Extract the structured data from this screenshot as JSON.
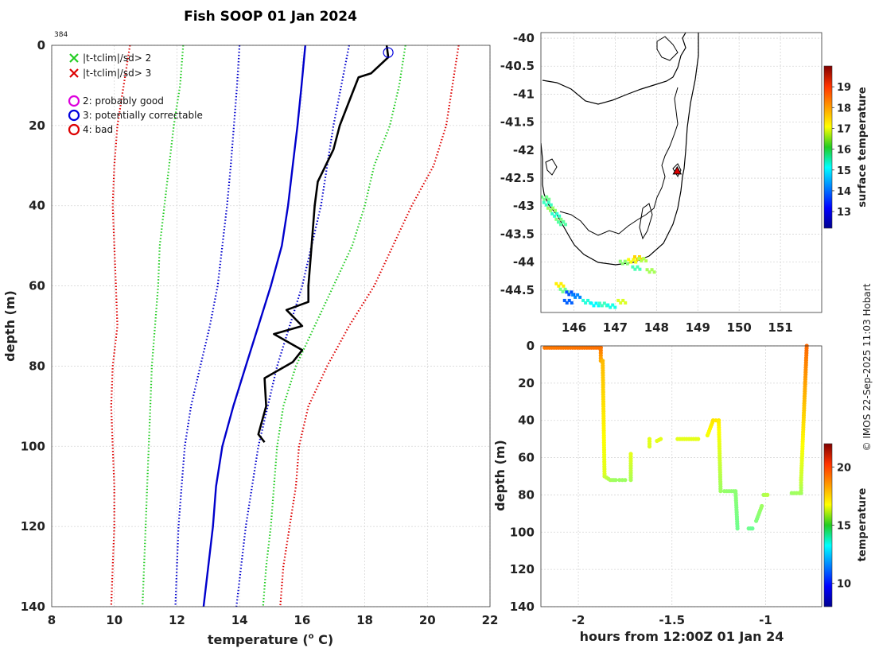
{
  "chart_data": [
    {
      "type": "line",
      "title": "Fish SOOP 01 Jan 2024",
      "annotation": "384",
      "xlabel": "temperature (",
      "xlabel_sup": "o",
      "xlabel_end": " C)",
      "ylabel": "depth (m)",
      "xlim": [
        8,
        22
      ],
      "ylim": [
        0,
        140
      ],
      "x_ticks": [
        "8",
        "10",
        "12",
        "14",
        "16",
        "18",
        "20",
        "22"
      ],
      "y_ticks": [
        "0",
        "20",
        "40",
        "60",
        "80",
        "100",
        "120",
        "140"
      ],
      "grid": true,
      "legend": [
        {
          "symbol": "x",
          "color": "#22cc22",
          "label": "|t-tclim|/sd> 2"
        },
        {
          "symbol": "x",
          "color": "#dd0000",
          "label": "|t-tclim|/sd> 3"
        },
        {
          "symbol": "o",
          "color": "#dd00dd",
          "label": "2: probably good"
        },
        {
          "symbol": "o",
          "color": "#0000dd",
          "label": "3: potentially correctable"
        },
        {
          "symbol": "o",
          "color": "#dd0000",
          "label": "4: bad"
        }
      ],
      "marker": {
        "x": 18.75,
        "depth": 1,
        "color": "#0000dd"
      },
      "series": [
        {
          "name": "clim mean",
          "color": "#0000cc",
          "style": "solid",
          "depth": [
            0,
            10,
            20,
            30,
            40,
            50,
            60,
            70,
            80,
            90,
            100,
            110,
            120,
            130,
            140
          ],
          "temp": [
            16.1,
            15.98,
            15.85,
            15.7,
            15.55,
            15.35,
            15.0,
            14.6,
            14.2,
            13.8,
            13.45,
            13.25,
            13.15,
            13.0,
            12.85
          ]
        },
        {
          "name": "-1 sd",
          "color": "#0000cc",
          "style": "dotted",
          "depth": [
            0,
            10,
            20,
            30,
            40,
            50,
            60,
            70,
            80,
            90,
            100,
            110,
            120,
            130,
            140
          ],
          "temp": [
            14.0,
            13.92,
            13.82,
            13.72,
            13.6,
            13.45,
            13.3,
            13.05,
            12.75,
            12.45,
            12.25,
            12.15,
            12.05,
            12.0,
            11.95
          ]
        },
        {
          "name": "+1 sd",
          "color": "#0000cc",
          "style": "dotted",
          "depth": [
            0,
            10,
            20,
            30,
            40,
            50,
            60,
            70,
            80,
            90,
            100,
            110,
            120,
            130,
            140
          ],
          "temp": [
            17.5,
            17.25,
            17.0,
            16.8,
            16.6,
            16.3,
            16.0,
            15.6,
            15.2,
            14.9,
            14.6,
            14.4,
            14.2,
            14.05,
            13.9
          ]
        },
        {
          "name": "-2 sd",
          "color": "#22cc22",
          "style": "dotted",
          "depth": [
            0,
            10,
            20,
            30,
            40,
            50,
            60,
            70,
            80,
            90,
            100,
            110,
            120,
            130,
            140
          ],
          "temp": [
            12.2,
            12.1,
            11.9,
            11.75,
            11.6,
            11.45,
            11.4,
            11.3,
            11.2,
            11.15,
            11.1,
            11.05,
            11.0,
            10.95,
            10.9
          ]
        },
        {
          "name": "+2 sd",
          "color": "#22cc22",
          "style": "dotted",
          "depth": [
            0,
            10,
            20,
            30,
            40,
            50,
            60,
            70,
            80,
            90,
            100,
            110,
            120,
            130,
            140
          ],
          "temp": [
            19.3,
            19.1,
            18.8,
            18.3,
            18.0,
            17.6,
            17.0,
            16.4,
            15.8,
            15.4,
            15.2,
            15.1,
            15.0,
            14.85,
            14.75
          ]
        },
        {
          "name": "-3 sd",
          "color": "#dd0000",
          "style": "dotted",
          "depth": [
            0,
            10,
            20,
            30,
            40,
            50,
            60,
            70,
            80,
            90,
            100,
            110,
            120,
            130,
            140
          ],
          "temp": [
            10.5,
            10.3,
            10.1,
            10.0,
            9.95,
            10.0,
            10.05,
            10.1,
            9.95,
            9.9,
            9.95,
            10.0,
            10.0,
            9.95,
            9.9
          ]
        },
        {
          "name": "+3 sd",
          "color": "#dd0000",
          "style": "dotted",
          "depth": [
            0,
            10,
            20,
            30,
            40,
            50,
            60,
            70,
            80,
            90,
            100,
            110,
            120,
            130,
            140
          ],
          "temp": [
            21.0,
            20.8,
            20.6,
            20.2,
            19.5,
            18.9,
            18.3,
            17.5,
            16.8,
            16.2,
            15.9,
            15.8,
            15.6,
            15.4,
            15.3
          ]
        },
        {
          "name": "profile",
          "color": "#000000",
          "style": "solid",
          "depth": [
            0,
            3,
            7,
            8,
            12,
            20,
            26,
            34,
            40,
            50,
            60,
            64,
            66,
            70,
            72,
            76,
            79,
            83,
            90,
            97,
            99
          ],
          "temp": [
            18.7,
            18.75,
            18.2,
            17.8,
            17.6,
            17.2,
            17.0,
            16.5,
            16.4,
            16.3,
            16.2,
            16.2,
            15.5,
            16.0,
            15.1,
            16.0,
            15.7,
            14.8,
            14.85,
            14.6,
            14.8
          ]
        }
      ]
    },
    {
      "type": "map",
      "xlim": [
        145.2,
        152.0
      ],
      "ylim": [
        -44.9,
        -39.9
      ],
      "x_ticks": [
        "146",
        "147",
        "148",
        "149",
        "150",
        "151"
      ],
      "y_ticks": [
        "-40",
        "-40.5",
        "-41",
        "-41.5",
        "-42",
        "-42.5",
        "-43",
        "-43.5",
        "-44",
        "-44.5"
      ],
      "colorbar_label": "surface temperature",
      "colorbar_ticks": [
        "13",
        "14",
        "15",
        "16",
        "17",
        "18",
        "19"
      ],
      "colorbar_range": [
        12.2,
        20.0
      ],
      "marker": {
        "lon": 148.5,
        "lat": -42.37,
        "shape": "triangle"
      },
      "points": [
        {
          "lon": 145.3,
          "lat": -42.85,
          "t": 16.0
        },
        {
          "lon": 145.35,
          "lat": -42.95,
          "t": 15.6
        },
        {
          "lon": 145.45,
          "lat": -43.05,
          "t": 16.3
        },
        {
          "lon": 145.55,
          "lat": -43.15,
          "t": 15.5
        },
        {
          "lon": 145.65,
          "lat": -43.25,
          "t": 16.1
        },
        {
          "lon": 145.7,
          "lat": -43.3,
          "t": 15.8
        },
        {
          "lon": 147.2,
          "lat": -44.0,
          "t": 16.2
        },
        {
          "lon": 147.4,
          "lat": -43.97,
          "t": 17.0
        },
        {
          "lon": 147.55,
          "lat": -43.92,
          "t": 17.4
        },
        {
          "lon": 147.65,
          "lat": -43.95,
          "t": 16.5
        },
        {
          "lon": 147.5,
          "lat": -44.1,
          "t": 15.7
        },
        {
          "lon": 147.85,
          "lat": -44.15,
          "t": 16.4
        },
        {
          "lon": 145.65,
          "lat": -44.4,
          "t": 17.2
        },
        {
          "lon": 145.75,
          "lat": -44.5,
          "t": 16.0
        },
        {
          "lon": 145.9,
          "lat": -44.55,
          "t": 13.8
        },
        {
          "lon": 146.05,
          "lat": -44.6,
          "t": 14.2
        },
        {
          "lon": 145.85,
          "lat": -44.7,
          "t": 13.9
        },
        {
          "lon": 146.3,
          "lat": -44.7,
          "t": 15.4
        },
        {
          "lon": 146.5,
          "lat": -44.75,
          "t": 15.1
        },
        {
          "lon": 146.7,
          "lat": -44.75,
          "t": 15.6
        },
        {
          "lon": 146.9,
          "lat": -44.78,
          "t": 15.3
        },
        {
          "lon": 147.15,
          "lat": -44.7,
          "t": 16.8
        }
      ]
    },
    {
      "type": "scatter",
      "xlabel": "hours from 12:00Z 01 Jan 24",
      "ylabel": "depth (m)",
      "xlim": [
        -2.2,
        -0.7
      ],
      "ylim": [
        0,
        140
      ],
      "x_ticks": [
        "-2",
        "-1.5",
        "-1"
      ],
      "x_tick_values": [
        -2,
        -1.5,
        -1
      ],
      "y_ticks": [
        "0",
        "20",
        "40",
        "60",
        "80",
        "100",
        "120",
        "140"
      ],
      "colorbar_label": "temperature",
      "colorbar_ticks": [
        "10",
        "15",
        "20"
      ],
      "colorbar_range": [
        8.0,
        22.0
      ],
      "segments": [
        {
          "x": [
            -2.18,
            -1.88
          ],
          "d": [
            1,
            1
          ],
          "t": [
            18.6,
            18.7
          ]
        },
        {
          "x": [
            -1.88,
            -1.88
          ],
          "d": [
            1,
            8
          ],
          "t": [
            18.7,
            17.9
          ]
        },
        {
          "x": [
            -1.87,
            -1.86
          ],
          "d": [
            8,
            70
          ],
          "t": [
            17.7,
            16.3
          ]
        },
        {
          "x": [
            -1.86,
            -1.83
          ],
          "d": [
            70,
            72
          ],
          "t": [
            16.1,
            15.6
          ]
        },
        {
          "x": [
            -1.82,
            -1.8
          ],
          "d": [
            72,
            72
          ],
          "t": [
            15.5,
            15.4
          ]
        },
        {
          "x": [
            -1.78,
            -1.75
          ],
          "d": [
            72,
            72
          ],
          "t": [
            15.4,
            15.4
          ]
        },
        {
          "x": [
            -1.72,
            -1.72
          ],
          "d": [
            72,
            58
          ],
          "t": [
            15.6,
            16.4
          ]
        },
        {
          "x": [
            -1.62,
            -1.62
          ],
          "d": [
            54,
            50
          ],
          "t": [
            16.3,
            16.4
          ]
        },
        {
          "x": [
            -1.58,
            -1.56
          ],
          "d": [
            51,
            50
          ],
          "t": [
            16.4,
            16.4
          ]
        },
        {
          "x": [
            -1.47,
            -1.36
          ],
          "d": [
            50,
            50
          ],
          "t": [
            16.4,
            16.4
          ]
        },
        {
          "x": [
            -1.31,
            -1.28
          ],
          "d": [
            48,
            40
          ],
          "t": [
            16.6,
            17.1
          ]
        },
        {
          "x": [
            -1.28,
            -1.25
          ],
          "d": [
            40,
            40
          ],
          "t": [
            17.1,
            17.0
          ]
        },
        {
          "x": [
            -1.25,
            -1.24
          ],
          "d": [
            40,
            78
          ],
          "t": [
            17.0,
            15.4
          ]
        },
        {
          "x": [
            -1.22,
            -1.17
          ],
          "d": [
            78,
            78
          ],
          "t": [
            15.3,
            15.2
          ]
        },
        {
          "x": [
            -1.16,
            -1.15
          ],
          "d": [
            78,
            98
          ],
          "t": [
            15.2,
            14.8
          ]
        },
        {
          "x": [
            -1.09,
            -1.07
          ],
          "d": [
            98,
            98
          ],
          "t": [
            14.8,
            14.7
          ]
        },
        {
          "x": [
            -1.05,
            -1.02
          ],
          "d": [
            94,
            86
          ],
          "t": [
            15.0,
            15.4
          ]
        },
        {
          "x": [
            -1.01,
            -0.99
          ],
          "d": [
            80,
            80
          ],
          "t": [
            15.6,
            15.8
          ]
        },
        {
          "x": [
            -0.86,
            -0.82
          ],
          "d": [
            79,
            79
          ],
          "t": [
            15.4,
            15.5
          ]
        },
        {
          "x": [
            -0.81,
            -0.81
          ],
          "d": [
            79,
            72
          ],
          "t": [
            15.5,
            16.0
          ]
        },
        {
          "x": [
            -0.81,
            -0.78
          ],
          "d": [
            72,
            0
          ],
          "t": [
            16.0,
            18.8
          ]
        }
      ]
    }
  ],
  "footer": "© IMOS 22-Sep-2025 11:03 Hobart"
}
